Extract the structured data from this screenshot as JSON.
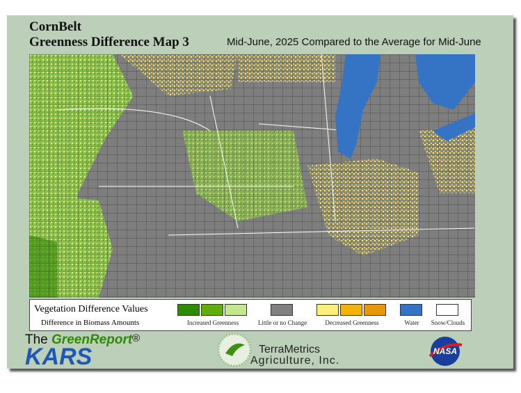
{
  "header": {
    "title": "CornBelt",
    "subtitle": "Greenness Difference Map 3",
    "period": "Mid-June, 2025 Compared to the Average for Mid-June"
  },
  "legend": {
    "title": "Vegetation Difference Values",
    "subtitle": "Difference in Biomass Amounts",
    "groups": [
      {
        "label": "Increased Greenness",
        "colors": [
          "#2f8a06",
          "#62ad0c",
          "#c2e98d"
        ]
      },
      {
        "label": "Little or no Change",
        "colors": [
          "#808080"
        ]
      },
      {
        "label": "Decreased Greenness",
        "colors": [
          "#fdf07a",
          "#f2b40a",
          "#e8960e"
        ]
      },
      {
        "label": "Water",
        "colors": [
          "#3573c4"
        ]
      },
      {
        "label": "Snow/Clouds",
        "colors": [
          "#ffffff"
        ]
      }
    ]
  },
  "footer": {
    "report_prefix": "The",
    "report_name": "GreenReport",
    "report_mark": "®",
    "kars": "KARS",
    "company": "TerraMetrics",
    "company_sub": "Agriculture, Inc.",
    "nasa": "NASA"
  }
}
